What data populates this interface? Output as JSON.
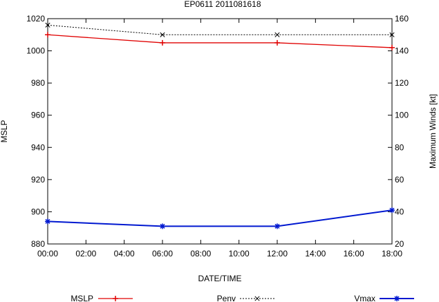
{
  "chart_data": {
    "type": "line",
    "title": "EP0611 2011081618",
    "xlabel": "DATE/TIME",
    "ylabel_left": "MSLP",
    "ylabel_right": "Maximum Winds [kt]",
    "x_range_hours": [
      0,
      18
    ],
    "x_ticks": [
      "00:00",
      "02:00",
      "04:00",
      "06:00",
      "08:00",
      "10:00",
      "12:00",
      "14:00",
      "16:00",
      "18:00"
    ],
    "ylim_left": [
      880,
      1020
    ],
    "yticks_left": [
      "880",
      "900",
      "920",
      "940",
      "960",
      "980",
      "1000",
      "1020"
    ],
    "ylim_right": [
      20,
      160
    ],
    "yticks_right": [
      "20",
      "40",
      "60",
      "80",
      "100",
      "120",
      "140",
      "160"
    ],
    "grid": false,
    "legend_position": "bottom",
    "series": [
      {
        "name": "MSLP",
        "axis": "left",
        "color": "#e00000",
        "marker": "plus",
        "dashed": false,
        "x": [
          0,
          6,
          12,
          18
        ],
        "values": [
          1010,
          1005,
          1005,
          1002
        ]
      },
      {
        "name": "Penv",
        "axis": "left",
        "color": "#000000",
        "marker": "cross",
        "dashed": true,
        "x": [
          0,
          6,
          12,
          18
        ],
        "values": [
          1016,
          1010,
          1010,
          1010
        ]
      },
      {
        "name": "Vmax",
        "axis": "right",
        "color": "#0018d0",
        "marker": "star",
        "dashed": false,
        "x": [
          0,
          6,
          12,
          18
        ],
        "values": [
          34,
          31,
          31,
          41
        ]
      }
    ]
  }
}
